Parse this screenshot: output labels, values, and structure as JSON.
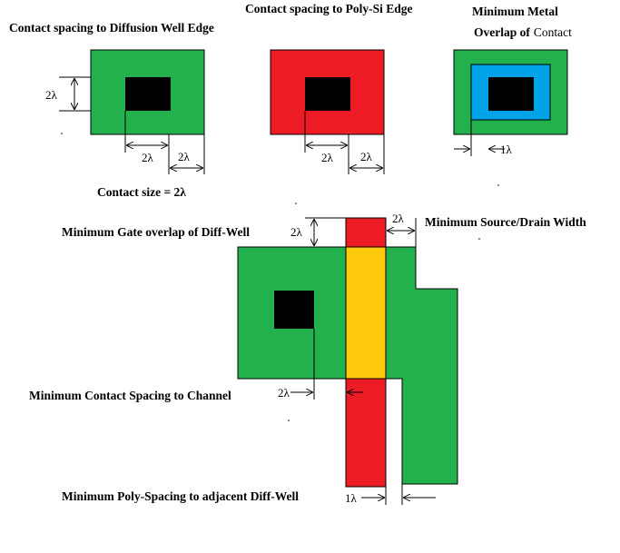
{
  "labels": {
    "contact_diffusion": "Contact spacing to Diffusion Well Edge",
    "contact_poly": "Contact spacing to Poly-Si Edge",
    "metal_overlap_1": "Minimum Metal",
    "metal_overlap_2_bold": "Overlap of",
    "metal_overlap_2_normal": "Contact",
    "contact_size": "Contact size = 2λ",
    "gate_overlap": "Minimum Gate overlap of Diff-Well",
    "source_drain_width": "Minimum Source/Drain Width",
    "contact_channel": "Minimum Contact Spacing to Channel",
    "poly_spacing": "Minimum Poly-Spacing to adjacent Diff-Well"
  },
  "dimensions": {
    "d_2l_left": "2λ",
    "d_2l_a": "2λ",
    "d_2l_b": "2λ",
    "d_2l_c": "2λ",
    "d_2l_d": "2λ",
    "d_1l_metal": "1λ",
    "d_2l_gate": "2λ",
    "d_2l_sd": "2λ",
    "d_2l_channel": "2λ",
    "d_1l_poly": "1λ"
  },
  "colors": {
    "diffusion": "#22b14c",
    "poly": "#ed1c24",
    "gate": "#ffc90e",
    "metal": "#00a2e8",
    "contact": "#000000"
  }
}
